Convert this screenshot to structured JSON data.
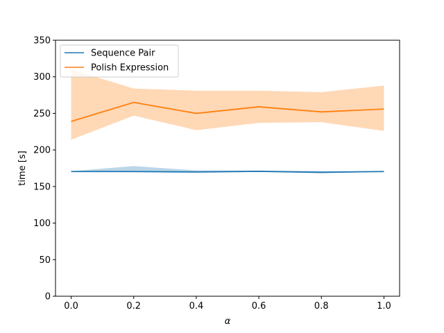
{
  "chart_data": {
    "type": "line",
    "xlabel": "α",
    "ylabel": "time [s]",
    "xlim": [
      -0.05,
      1.05
    ],
    "ylim": [
      0,
      350
    ],
    "xticks": [
      0.0,
      0.2,
      0.4,
      0.6,
      0.8,
      1.0
    ],
    "xtick_labels": [
      "0.0",
      "0.2",
      "0.4",
      "0.6",
      "0.8",
      "1.0"
    ],
    "yticks": [
      0,
      50,
      100,
      150,
      200,
      250,
      300,
      350
    ],
    "ytick_labels": [
      "0",
      "50",
      "100",
      "150",
      "200",
      "250",
      "300",
      "350"
    ],
    "grid": false,
    "legend_position": "upper-left",
    "x": [
      0.0,
      0.2,
      0.4,
      0.6,
      0.8,
      1.0
    ],
    "series": [
      {
        "name": "Sequence Pair",
        "color": "#1f77b4",
        "values": [
          170.5,
          170.5,
          170.0,
          170.8,
          169.5,
          170.5
        ],
        "band_lower": [
          170.0,
          169.5,
          168.5,
          170.0,
          168.0,
          170.0
        ],
        "band_upper": [
          171.0,
          178.0,
          172.0,
          171.5,
          171.0,
          171.0
        ]
      },
      {
        "name": "Polish Expression",
        "color": "#ff7f0e",
        "values": [
          239,
          265,
          250,
          259,
          252,
          256
        ],
        "band_lower": [
          214,
          247,
          227,
          237,
          238,
          226
        ],
        "band_upper": [
          310,
          284,
          281,
          281,
          279,
          288
        ]
      }
    ]
  }
}
